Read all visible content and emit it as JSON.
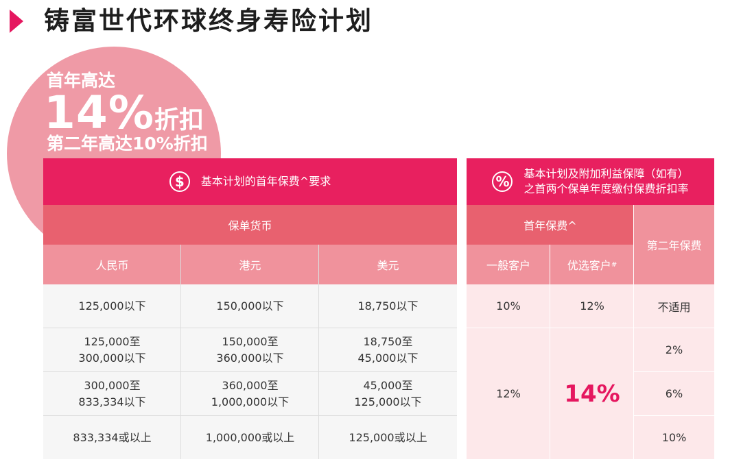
{
  "title": "铸富世代环球终身寿险计划",
  "promo": {
    "line1": "首年高达",
    "big_number": "14%",
    "big_suffix": "折扣",
    "line3": "第二年高达10%折扣"
  },
  "left_table": {
    "header_icon": "$",
    "header_icon_name": "dollar-icon",
    "header": "基本计划的首年保费^要求",
    "subheader": "保单货币",
    "columns": [
      "人民币",
      "港元",
      "美元"
    ],
    "rows": [
      [
        "125,000以下",
        "150,000以下",
        "18,750以下"
      ],
      [
        "125,000至\n300,000以下",
        "150,000至\n360,000以下",
        "18,750至\n45,000以下"
      ],
      [
        "300,000至\n833,334以下",
        "360,000至\n1,000,000以下",
        "45,000至\n125,000以下"
      ],
      [
        "833,334或以上",
        "1,000,000或以上",
        "125,000或以上"
      ]
    ]
  },
  "right_table": {
    "header_icon": "%",
    "header_icon_name": "percent-icon",
    "header_line1": "基本计划及附加利益保障（如有）",
    "header_line2": "之首两个保单年度缴付保费折扣率",
    "first_year": "首年保费^",
    "second_year": "第二年保费",
    "general_client": "一般客户",
    "preferred_client": "优选客户",
    "preferred_mark": "#",
    "row1": {
      "general": "10%",
      "preferred": "12%",
      "second": "不适用"
    },
    "general_rest": "12%",
    "preferred_rest": "14%",
    "second_rest": [
      "2%",
      "6%",
      "10%"
    ]
  }
}
